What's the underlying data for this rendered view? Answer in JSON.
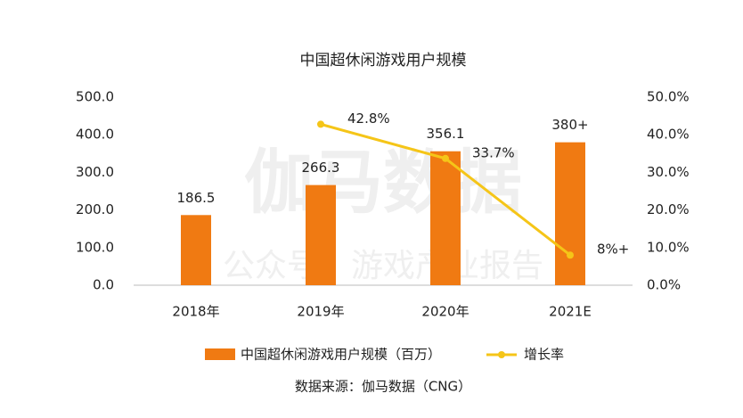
{
  "chart_data": {
    "type": "bar-line",
    "title": "中国超休闲游戏用户规模",
    "watermark": [
      "伽马数据",
      "公众号：游戏产业报告"
    ],
    "source": "数据来源：伽马数据（CNG）",
    "categories": [
      "2018年",
      "2019年",
      "2020年",
      "2021E"
    ],
    "series": [
      {
        "name": "中国超休闲游戏用户规模（百万）",
        "type": "bar",
        "color": "#f07a12",
        "values": [
          186.5,
          266.3,
          356.1,
          380
        ],
        "value_labels": [
          "186.5",
          "266.3",
          "356.1",
          "380+"
        ]
      },
      {
        "name": "增长率",
        "type": "line",
        "axis": "y2",
        "color": "#f5c518",
        "values": [
          null,
          42.8,
          33.7,
          8
        ],
        "value_labels": [
          null,
          "42.8%",
          "33.7%",
          "8%+"
        ]
      }
    ],
    "ylim": [
      0,
      500
    ],
    "yticks": [
      {
        "value": 0,
        "label": "0.0"
      },
      {
        "value": 100,
        "label": "100.0"
      },
      {
        "value": 200,
        "label": "200.0"
      },
      {
        "value": 300,
        "label": "300.0"
      },
      {
        "value": 400,
        "label": "400.0"
      },
      {
        "value": 500,
        "label": "500.0"
      }
    ],
    "y2lim": [
      0,
      50
    ],
    "y2ticks": [
      {
        "value": 0,
        "label": "0.0%"
      },
      {
        "value": 10,
        "label": "10.0%"
      },
      {
        "value": 20,
        "label": "20.0%"
      },
      {
        "value": 30,
        "label": "30.0%"
      },
      {
        "value": 40,
        "label": "40.0%"
      },
      {
        "value": 50,
        "label": "50.0%"
      }
    ],
    "grid": false,
    "legend": "bottom"
  }
}
